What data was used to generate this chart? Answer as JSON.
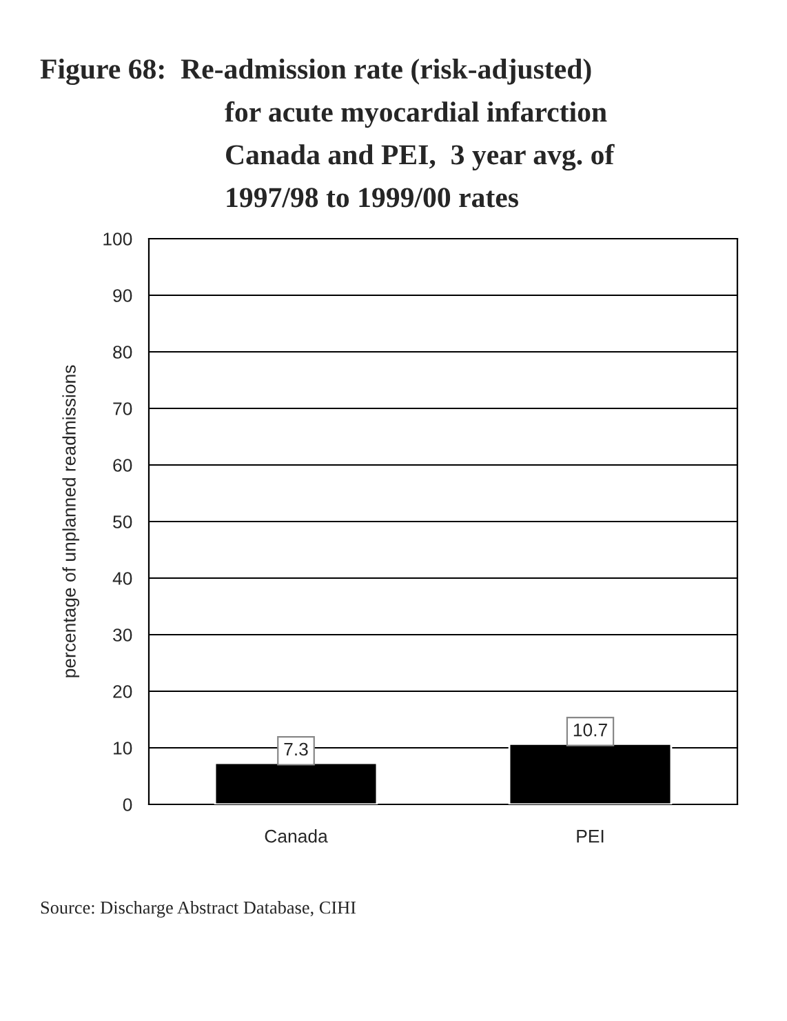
{
  "chart_data": {
    "type": "bar",
    "title": "Figure 68:  Re-admission rate (risk-adjusted)\nfor acute myocardial infarction\nCanada and PEI,  3 year avg. of\n1997/98 to 1999/00 rates",
    "ylabel": "percentage of unplanned readmissions",
    "categories": [
      "Canada",
      "PEI"
    ],
    "values": [
      7.3,
      10.7
    ],
    "color": "#000000",
    "data_labels": true,
    "ylim": [
      0,
      100
    ],
    "yticks": [
      0,
      10,
      20,
      30,
      40,
      50,
      60,
      70,
      80,
      90,
      100
    ],
    "grid": "y",
    "annotations": [
      "Source: Discharge Abstract Database, CIHI"
    ]
  }
}
